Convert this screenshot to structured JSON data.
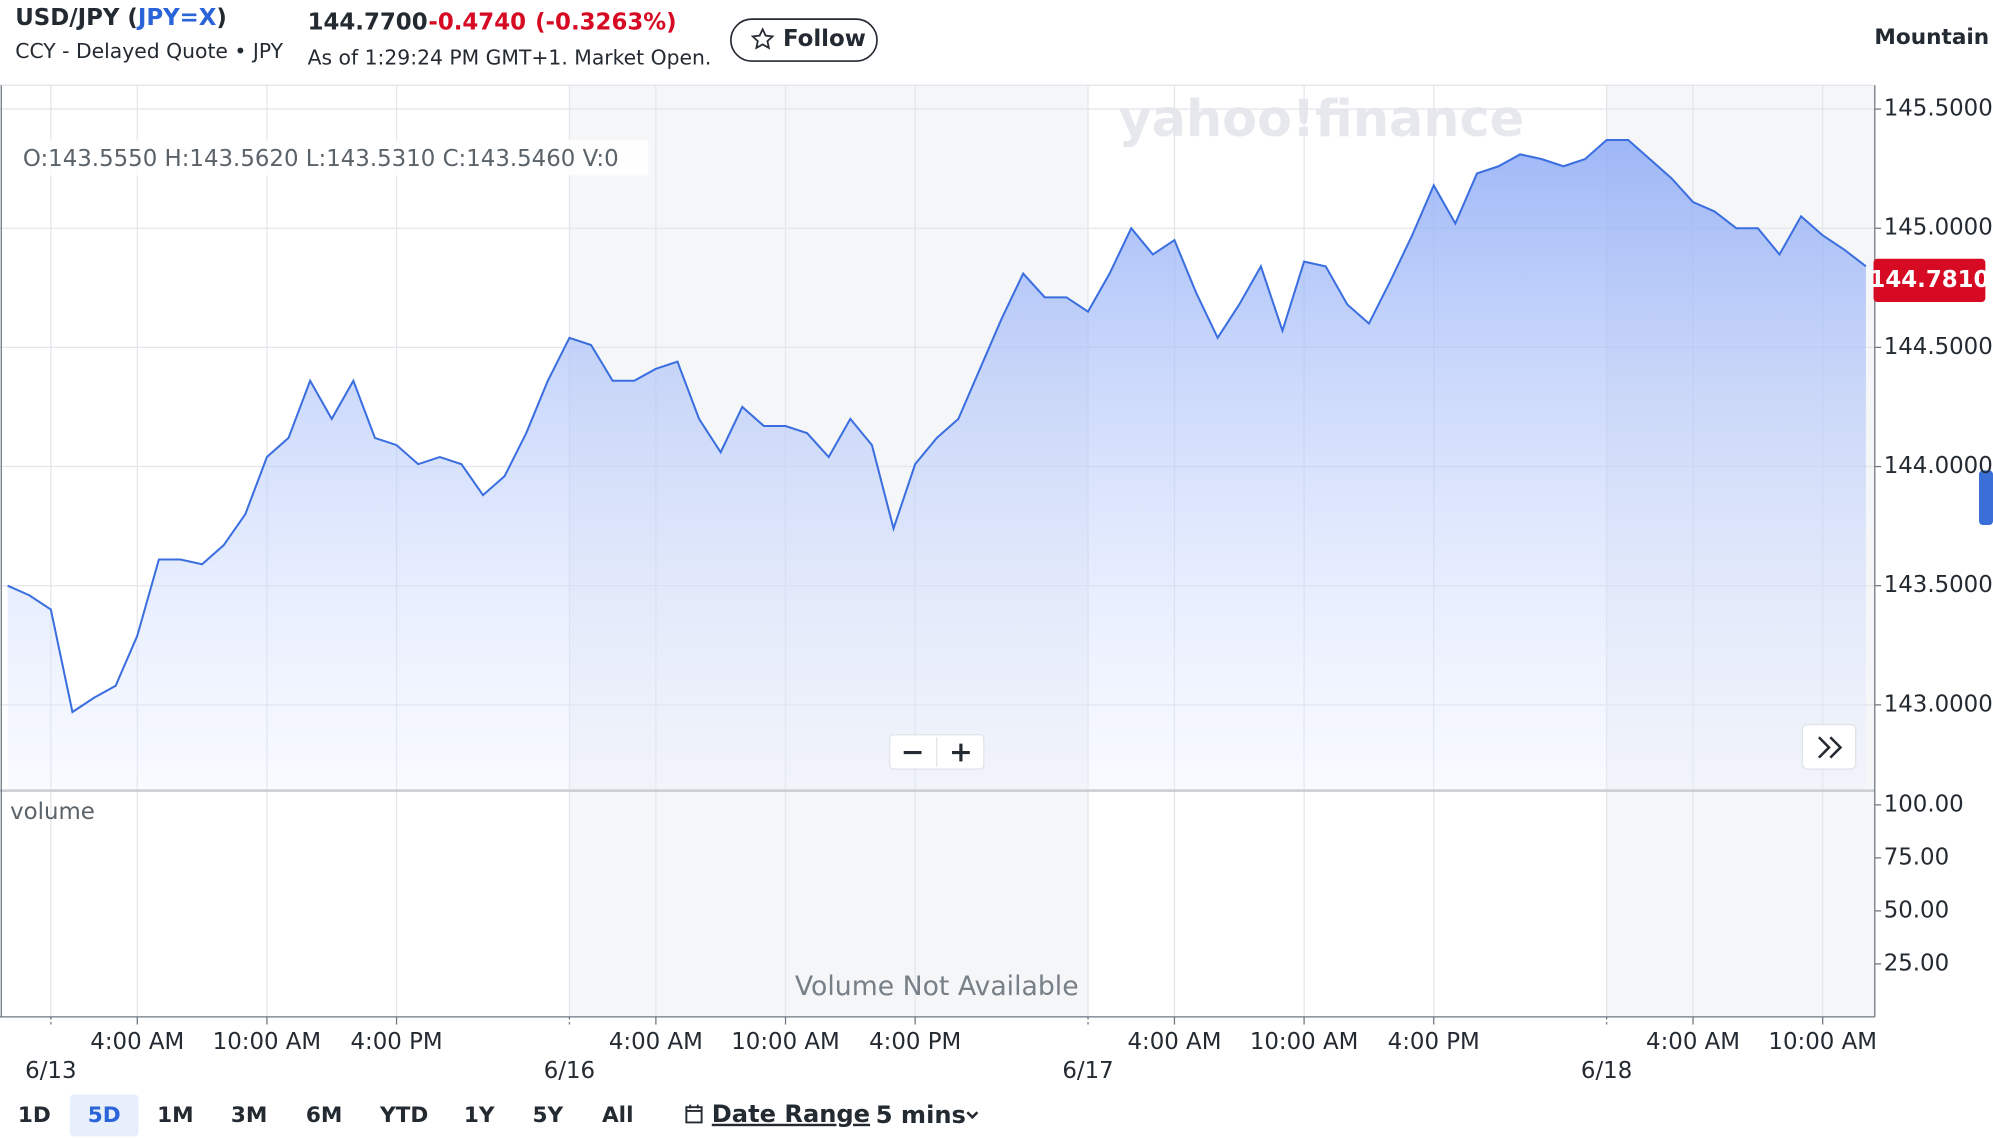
{
  "header": {
    "title_open": "USD/JPY (",
    "ticker": "JPY=X",
    "title_close": ")",
    "subtitle": "CCY - Delayed Quote • JPY",
    "price": "144.7700",
    "change": "-0.4740",
    "change_pct": "(-0.3263%)",
    "as_of": "As of 1:29:24 PM GMT+1. Market Open.",
    "follow": "Follow",
    "chart_style": "Mountain"
  },
  "watermark": "yahoo!finance",
  "ohlc": {
    "open": "O:143.5550",
    "high": "H:143.5620",
    "low": "L:143.5310",
    "close": "C:143.5460",
    "volume": "V:0"
  },
  "chart_data": {
    "type": "line",
    "color": "#3b6fe0",
    "grid": true,
    "categories": [
      null,
      null,
      "6/13",
      null,
      null,
      null,
      "4:00 AM",
      null,
      null,
      null,
      null,
      null,
      "10:00 AM",
      null,
      null,
      null,
      null,
      null,
      "4:00 PM",
      null,
      null,
      null,
      null,
      null,
      null,
      null,
      "6/16",
      null,
      null,
      null,
      "4:00 AM",
      null,
      null,
      null,
      null,
      null,
      "10:00 AM",
      null,
      null,
      null,
      null,
      null,
      "4:00 PM",
      null,
      null,
      null,
      null,
      null,
      null,
      null,
      "6/17",
      null,
      null,
      null,
      "4:00 AM",
      null,
      null,
      null,
      null,
      null,
      "10:00 AM",
      null,
      null,
      null,
      null,
      null,
      "4:00 PM",
      null,
      null,
      null,
      null,
      null,
      null,
      null,
      "6/18",
      null,
      null,
      null,
      "4:00 AM",
      null,
      null,
      null,
      null,
      null,
      "10:00 AM",
      null,
      null
    ],
    "values": [
      143.5,
      143.46,
      143.4,
      142.97,
      143.03,
      143.08,
      143.29,
      143.61,
      143.61,
      143.59,
      143.67,
      143.8,
      144.04,
      144.12,
      144.36,
      144.2,
      144.36,
      144.12,
      144.09,
      144.01,
      144.04,
      144.01,
      143.88,
      143.96,
      144.14,
      144.36,
      144.54,
      144.51,
      144.36,
      144.36,
      144.41,
      144.44,
      144.2,
      144.06,
      144.25,
      144.17,
      144.17,
      144.14,
      144.04,
      144.2,
      144.09,
      143.74,
      144.01,
      144.12,
      144.2,
      144.41,
      144.62,
      144.81,
      144.71,
      144.71,
      144.65,
      144.81,
      145.0,
      144.89,
      144.95,
      144.73,
      144.54,
      144.68,
      144.84,
      144.57,
      144.86,
      144.84,
      144.68,
      144.6,
      144.78,
      144.97,
      145.18,
      145.02,
      145.23,
      145.26,
      145.31,
      145.29,
      145.26,
      145.29,
      145.37,
      145.37,
      145.29,
      145.21,
      145.11,
      145.07,
      145.0,
      145.0,
      144.89,
      145.05,
      144.97,
      144.91,
      144.84
    ],
    "ylim": [
      142.64,
      145.6
    ],
    "yticks": [
      {
        "value": 143,
        "label": "143.0000"
      },
      {
        "value": 143.5,
        "label": "143.5000"
      },
      {
        "value": 144,
        "label": "144.0000"
      },
      {
        "value": 144.5,
        "label": "144.5000"
      },
      {
        "value": 145,
        "label": "145.0000"
      },
      {
        "value": 145.5,
        "label": "145.5000"
      }
    ],
    "last_price": {
      "value": 144.781,
      "label": "144.7810"
    }
  },
  "volume_panel": {
    "label": "volume",
    "note": "Volume Not Available",
    "ylim": [
      0,
      106.7
    ],
    "yticks": [
      {
        "value": 25,
        "label": "25.00"
      },
      {
        "value": 50,
        "label": "50.00"
      },
      {
        "value": 75,
        "label": "75.00"
      },
      {
        "value": 100,
        "label": "100.00"
      }
    ]
  },
  "controls": {
    "ranges": [
      "1D",
      "5D",
      "1M",
      "3M",
      "6M",
      "YTD",
      "1Y",
      "5Y",
      "All"
    ],
    "date_range": "Date Range",
    "interval": "5 mins"
  }
}
